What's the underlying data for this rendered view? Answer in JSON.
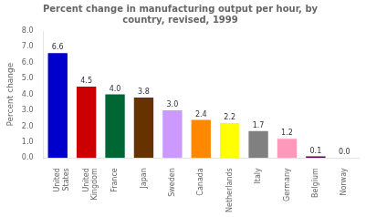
{
  "chart_data": {
    "type": "bar",
    "title": "Percent change in manufacturing output per hour, by\ncountry, revised, 1999",
    "categories": [
      "United\nStates",
      "United\nKingdom",
      "France",
      "Japan",
      "Sweden",
      "Canada",
      "Netherlands",
      "Italy",
      "Germany",
      "Belgium",
      "Norway"
    ],
    "values": [
      6.6,
      4.5,
      4.0,
      3.8,
      3.0,
      2.4,
      2.2,
      1.7,
      1.2,
      0.1,
      0.0
    ],
    "value_labels": [
      "6.6",
      "4.5",
      "4.0",
      "3.8",
      "3.0",
      "2.4",
      "2.2",
      "1.7",
      "1.2",
      "0.1",
      "0.0"
    ],
    "data_labels": true,
    "colors": [
      "#0000CC",
      "#CC0000",
      "#006633",
      "#663300",
      "#CC99FF",
      "#FF8800",
      "#FFFF00",
      "#808080",
      "#FF99BB",
      "#550055",
      "#DDDDDD"
    ],
    "ylabel": "Percent change",
    "ylim": [
      0.0,
      8.0
    ],
    "yticks": [
      {
        "value": 0,
        "label": "0.0"
      },
      {
        "value": 1,
        "label": "1.0"
      },
      {
        "value": 2,
        "label": "2.0"
      },
      {
        "value": 3,
        "label": "3.0"
      },
      {
        "value": 4,
        "label": "4.0"
      },
      {
        "value": 5,
        "label": "5.0"
      },
      {
        "value": 6,
        "label": "6.0"
      },
      {
        "value": 7,
        "label": "7.0"
      },
      {
        "value": 8,
        "label": "8.0"
      }
    ],
    "grid": false
  }
}
